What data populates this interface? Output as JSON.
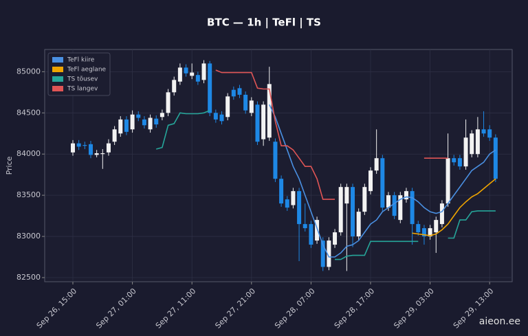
{
  "chart_data": {
    "type": "candlestick",
    "title": "BTC — 1h  |  TeFl  |  TS",
    "ylabel": "Price",
    "watermark": "aieon.ee",
    "x": [
      "Sep 26, 15:00",
      "Sep 26, 16:00",
      "Sep 26, 17:00",
      "Sep 26, 18:00",
      "Sep 26, 19:00",
      "Sep 26, 20:00",
      "Sep 26, 21:00",
      "Sep 26, 22:00",
      "Sep 26, 23:00",
      "Sep 27, 00:00",
      "Sep 27, 01:00",
      "Sep 27, 02:00",
      "Sep 27, 03:00",
      "Sep 27, 04:00",
      "Sep 27, 05:00",
      "Sep 27, 06:00",
      "Sep 27, 07:00",
      "Sep 27, 08:00",
      "Sep 27, 09:00",
      "Sep 27, 10:00",
      "Sep 27, 11:00",
      "Sep 27, 12:00",
      "Sep 27, 13:00",
      "Sep 27, 14:00",
      "Sep 27, 15:00",
      "Sep 27, 16:00",
      "Sep 27, 17:00",
      "Sep 27, 18:00",
      "Sep 27, 19:00",
      "Sep 27, 20:00",
      "Sep 27, 21:00",
      "Sep 27, 22:00",
      "Sep 27, 23:00",
      "Sep 28, 00:00",
      "Sep 28, 01:00",
      "Sep 28, 02:00",
      "Sep 28, 03:00",
      "Sep 28, 04:00",
      "Sep 28, 05:00",
      "Sep 28, 06:00",
      "Sep 28, 07:00",
      "Sep 28, 08:00",
      "Sep 28, 09:00",
      "Sep 28, 10:00",
      "Sep 28, 11:00",
      "Sep 28, 12:00",
      "Sep 28, 13:00",
      "Sep 28, 14:00",
      "Sep 28, 15:00",
      "Sep 28, 16:00",
      "Sep 28, 17:00",
      "Sep 28, 18:00",
      "Sep 28, 19:00",
      "Sep 28, 20:00",
      "Sep 28, 21:00",
      "Sep 28, 22:00",
      "Sep 28, 23:00",
      "Sep 29, 00:00",
      "Sep 29, 01:00",
      "Sep 29, 02:00",
      "Sep 29, 03:00",
      "Sep 29, 04:00",
      "Sep 29, 05:00",
      "Sep 29, 06:00",
      "Sep 29, 07:00",
      "Sep 29, 08:00",
      "Sep 29, 09:00",
      "Sep 29, 10:00",
      "Sep 29, 11:00",
      "Sep 29, 12:00",
      "Sep 29, 13:00",
      "Sep 29, 14:00"
    ],
    "open": [
      84020,
      84130,
      84110,
      84120,
      83990,
      84010,
      84020,
      84150,
      84250,
      84420,
      84300,
      84480,
      84420,
      84300,
      84430,
      84450,
      84500,
      84750,
      84880,
      85050,
      84950,
      84960,
      84900,
      85100,
      84500,
      84480,
      84450,
      84780,
      84800,
      84720,
      84500,
      84600,
      84180,
      84200,
      84150,
      83700,
      83450,
      83380,
      83550,
      83150,
      83150,
      82950,
      82950,
      82630,
      82900,
      83050,
      83400,
      83600,
      83000,
      83300,
      83550,
      83800,
      83950,
      83350,
      83500,
      83200,
      83450,
      83550,
      83150,
      83100,
      83000,
      83050,
      83150,
      83400,
      83950,
      83950,
      83850,
      84000,
      84000,
      84300,
      84300,
      84200
    ],
    "high": [
      84170,
      84170,
      84150,
      84160,
      84050,
      84060,
      84180,
      84340,
      84460,
      84460,
      84530,
      84520,
      84460,
      84480,
      84470,
      84540,
      84790,
      84940,
      85100,
      85090,
      85100,
      85000,
      85140,
      85130,
      84540,
      84520,
      84740,
      84820,
      84840,
      84760,
      84690,
      84640,
      84640,
      85060,
      84190,
      83740,
      83490,
      83590,
      83590,
      83400,
      83190,
      83240,
      82990,
      82990,
      83090,
      83640,
      83640,
      83640,
      83340,
      83640,
      83840,
      84300,
      83990,
      83540,
      83540,
      83540,
      83590,
      83590,
      83190,
      83140,
      83140,
      83240,
      83440,
      84250,
      83990,
      83990,
      84420,
      84290,
      84450,
      84520,
      84350,
      84240
    ],
    "low": [
      83980,
      84050,
      84060,
      83950,
      83960,
      83820,
      83980,
      84110,
      84210,
      84230,
      84260,
      84400,
      84310,
      84260,
      84320,
      84410,
      84460,
      84710,
      84840,
      84940,
      84910,
      84840,
      84860,
      84460,
      84380,
      84360,
      84410,
      84660,
      84680,
      84490,
      84460,
      84110,
      84100,
      84160,
      83660,
      83360,
      83310,
      83340,
      82700,
      83060,
      82860,
      82910,
      82580,
      82590,
      82860,
      83010,
      82580,
      82870,
      82960,
      83260,
      83510,
      83760,
      83310,
      83310,
      83210,
      83160,
      83410,
      82900,
      83010,
      82900,
      82960,
      82800,
      83110,
      83360,
      83860,
      83810,
      83810,
      83960,
      83960,
      84210,
      84160,
      83660
    ],
    "close": [
      84130,
      84090,
      84100,
      83990,
      84010,
      84010,
      84130,
      84300,
      84420,
      84270,
      84480,
      84440,
      84350,
      84440,
      84360,
      84500,
      84750,
      84900,
      85050,
      84980,
      84990,
      84880,
      85100,
      84500,
      84420,
      84400,
      84700,
      84700,
      84720,
      84530,
      84650,
      84150,
      84600,
      84850,
      83700,
      83400,
      83350,
      83550,
      83150,
      83100,
      82900,
      83200,
      82630,
      82950,
      83050,
      83600,
      83600,
      83000,
      83300,
      83600,
      83800,
      83950,
      83350,
      83500,
      83250,
      83500,
      83550,
      83150,
      83050,
      83000,
      83100,
      83200,
      83400,
      83950,
      83900,
      83850,
      84200,
      84250,
      84300,
      84250,
      84200,
      83700
    ],
    "up_color": "#f2f2f2",
    "down_color": "#1e88e5",
    "series": [
      {
        "name": "TeFl kiire",
        "color": "#4a90e2",
        "values": [
          null,
          null,
          null,
          null,
          null,
          null,
          null,
          null,
          null,
          null,
          null,
          null,
          null,
          null,
          null,
          null,
          null,
          null,
          null,
          null,
          null,
          null,
          null,
          null,
          null,
          null,
          null,
          null,
          null,
          null,
          null,
          null,
          null,
          84600,
          84450,
          84250,
          84050,
          83850,
          83700,
          83500,
          83300,
          83100,
          82900,
          82750,
          82750,
          82800,
          82880,
          82900,
          82950,
          83050,
          83150,
          83200,
          83300,
          83350,
          83400,
          83450,
          83480,
          83470,
          83420,
          83350,
          83300,
          83280,
          83300,
          83400,
          83500,
          83600,
          83700,
          83800,
          83850,
          83900,
          84000,
          84050
        ]
      },
      {
        "name": "TeFl aeglane",
        "color": "#f0a500",
        "values": [
          null,
          null,
          null,
          null,
          null,
          null,
          null,
          null,
          null,
          null,
          null,
          null,
          null,
          null,
          null,
          null,
          null,
          null,
          null,
          null,
          null,
          null,
          null,
          null,
          null,
          null,
          null,
          null,
          null,
          null,
          null,
          null,
          null,
          null,
          null,
          null,
          null,
          null,
          null,
          null,
          null,
          null,
          null,
          null,
          null,
          null,
          null,
          null,
          null,
          null,
          null,
          null,
          null,
          null,
          null,
          null,
          null,
          83040,
          83030,
          83020,
          83010,
          83030,
          83080,
          83150,
          83250,
          83350,
          83420,
          83480,
          83520,
          83580,
          83640,
          83700
        ]
      },
      {
        "name": "TS tõusev",
        "color": "#26a69a",
        "values": [
          null,
          null,
          null,
          null,
          null,
          null,
          null,
          null,
          null,
          null,
          null,
          null,
          null,
          null,
          84060,
          84080,
          84350,
          84370,
          84500,
          84490,
          84490,
          84490,
          84500,
          84530,
          null,
          null,
          null,
          null,
          null,
          null,
          null,
          null,
          null,
          null,
          null,
          null,
          null,
          null,
          null,
          null,
          null,
          null,
          null,
          null,
          82720,
          82720,
          82760,
          82770,
          82770,
          82770,
          82940,
          82940,
          82940,
          82940,
          82940,
          82940,
          82940,
          82940,
          82940,
          null,
          null,
          null,
          null,
          82980,
          82980,
          83200,
          83200,
          83300,
          83310,
          83310,
          83310,
          83310
        ]
      },
      {
        "name": "TS langev",
        "color": "#e05555",
        "values": [
          null,
          null,
          null,
          null,
          null,
          null,
          null,
          null,
          null,
          null,
          null,
          null,
          null,
          null,
          null,
          null,
          null,
          null,
          null,
          null,
          null,
          null,
          null,
          null,
          85020,
          84990,
          84990,
          84990,
          84990,
          84990,
          84990,
          84800,
          84790,
          84790,
          84400,
          84100,
          84100,
          84050,
          83950,
          83850,
          83850,
          83700,
          83450,
          83450,
          83450,
          null,
          null,
          null,
          null,
          null,
          null,
          null,
          null,
          null,
          null,
          null,
          null,
          null,
          null,
          83950,
          83950,
          83950,
          83950,
          83950,
          null,
          null,
          null,
          null,
          null,
          null,
          null,
          null
        ]
      }
    ],
    "ylim": [
      82450,
      85270
    ],
    "yticks": [
      82500,
      83000,
      83500,
      84000,
      84500,
      85000
    ],
    "xticks": [
      "Sep 26, 15:00",
      "Sep 27, 01:00",
      "Sep 27, 11:00",
      "Sep 27, 21:00",
      "Sep 28, 07:00",
      "Sep 28, 17:00",
      "Sep 29, 03:00",
      "Sep 29, 13:00"
    ],
    "grid": true,
    "legend": "upper left"
  }
}
